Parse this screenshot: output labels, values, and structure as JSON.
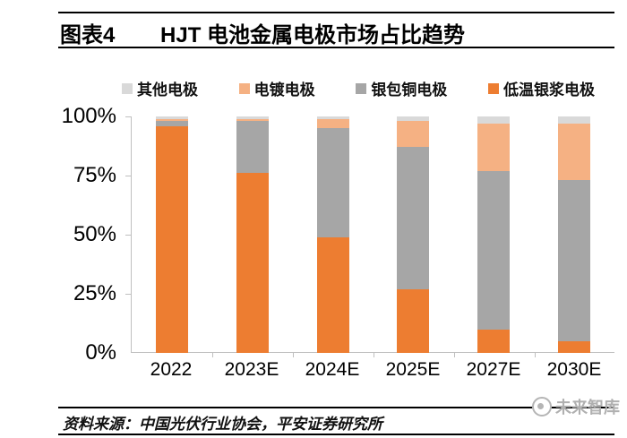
{
  "header": {
    "figure_label": "图表4",
    "title": "HJT 电池金属电极市场占比趋势"
  },
  "chart_data": {
    "type": "bar",
    "stacked": true,
    "title": "HJT 电池金属电极市场占比趋势",
    "categories": [
      "2022",
      "2023E",
      "2024E",
      "2025E",
      "2027E",
      "2030E"
    ],
    "series": [
      {
        "name": "低温银浆电极",
        "color": "#ED7D31",
        "values": [
          96,
          76,
          49,
          27,
          10,
          5
        ]
      },
      {
        "name": "银包铜电极",
        "color": "#A6A6A6",
        "values": [
          2,
          22,
          46,
          60,
          67,
          68
        ]
      },
      {
        "name": "电镀电极",
        "color": "#F5B183",
        "values": [
          1,
          1,
          4,
          11,
          20,
          24
        ]
      },
      {
        "name": "其他电极",
        "color": "#D9D9D9",
        "values": [
          1,
          1,
          1,
          2,
          3,
          3
        ]
      }
    ],
    "ylabel": "",
    "xlabel": "",
    "ylim": [
      0,
      100
    ],
    "y_ticks": [
      {
        "label": "100%",
        "value": 100
      },
      {
        "label": "75%",
        "value": 75
      },
      {
        "label": "50%",
        "value": 50
      },
      {
        "label": "25%",
        "value": 25
      },
      {
        "label": "0%",
        "value": 0
      }
    ],
    "grid": false,
    "legend_position": "top",
    "legend_order_note": "legend shown reversed: 其他电极, 电镀电极, 银包铜电极, 低温银浆电极"
  },
  "footer": {
    "source": "资料来源：中国光伏行业协会，平安证券研究所",
    "watermark": "未来智库"
  }
}
